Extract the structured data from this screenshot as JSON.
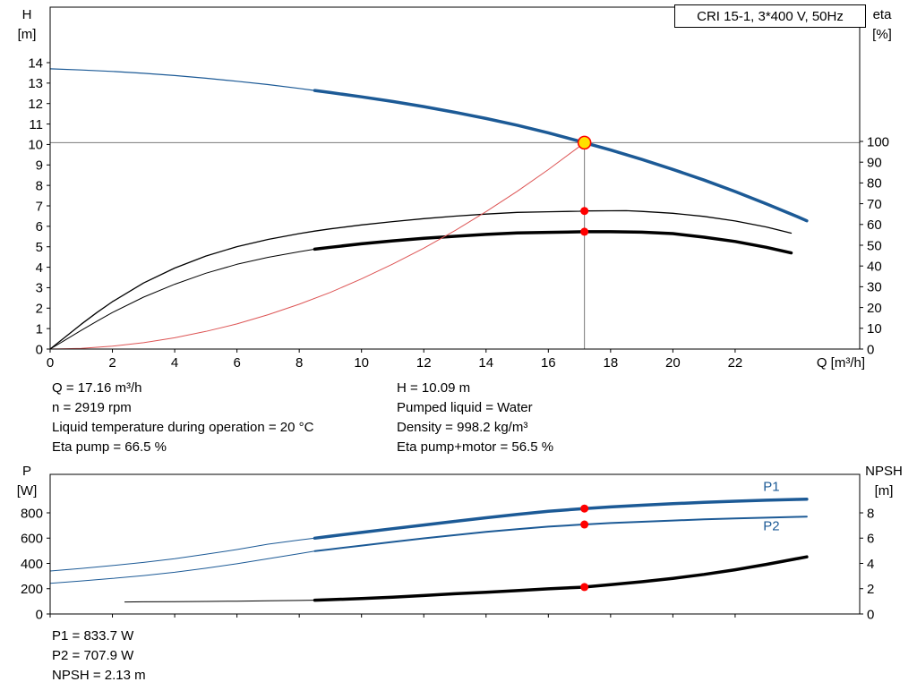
{
  "title_box": "CRI 15-1, 3*400 V, 50Hz",
  "info_top_left": [
    "Q = 17.16 m³/h",
    "n = 2919 rpm",
    "Liquid temperature during operation = 20 °C",
    "Eta pump = 66.5 %"
  ],
  "info_top_right": [
    "H = 10.09 m",
    "Pumped liquid = Water",
    "Density = 998.2 kg/m³",
    "Eta pump+motor = 56.5 %"
  ],
  "info_bottom": [
    "P1 = 833.7 W",
    "P2 = 707.9 W",
    "NPSH = 2.13 m"
  ],
  "operating_point": {
    "Q_m3h": 17.16,
    "H_m": 10.09,
    "n_rpm": 2919,
    "eta_pump_pct": 66.5,
    "eta_pump_motor_pct": 56.5,
    "P1_W": 833.7,
    "P2_W": 707.9,
    "NPSH_m": 2.13,
    "liquid": "Water",
    "density_kg_m3": 998.2,
    "temperature_C": 20
  },
  "colors": {
    "curve_blue": "#1c5a96",
    "curve_black": "#000000",
    "curve_red": "#dd5555",
    "marker_red": "#ff0000",
    "marker_yellow": "#ffe000",
    "crosshair_gray": "#7a7a7a"
  },
  "chart_data": [
    {
      "type": "line",
      "name": "hq-eta-chart",
      "title": "CRI 15-1, 3*400 V, 50Hz",
      "x_axis": {
        "label": "Q [m³/h]",
        "min": 0,
        "max": 26,
        "ticks": [
          0,
          2,
          4,
          6,
          8,
          10,
          12,
          14,
          16,
          18,
          20,
          22
        ],
        "show_labels": true
      },
      "y_left": {
        "label": [
          "H",
          "[m]"
        ],
        "min": 0,
        "max": 14,
        "ticks": [
          0,
          1,
          2,
          3,
          4,
          5,
          6,
          7,
          8,
          9,
          10,
          11,
          12,
          13,
          14
        ]
      },
      "y_right": {
        "label": [
          "eta",
          "[%]"
        ],
        "min": 0,
        "max": 100,
        "ticks": [
          0,
          10,
          20,
          30,
          40,
          50,
          60,
          70,
          80,
          90,
          100
        ]
      },
      "crosshair": {
        "x": 17.16,
        "v": 10.09
      },
      "series": [
        {
          "name": "head-curve-thin",
          "axis": "left",
          "color": "#1c5a96",
          "width": 1.2,
          "points": [
            [
              0,
              13.7
            ],
            [
              1,
              13.64
            ],
            [
              2,
              13.57
            ],
            [
              3,
              13.48
            ],
            [
              4,
              13.37
            ],
            [
              5,
              13.24
            ],
            [
              6,
              13.09
            ],
            [
              7,
              12.93
            ],
            [
              8,
              12.74
            ],
            [
              8.5,
              12.64
            ]
          ]
        },
        {
          "name": "head-curve",
          "axis": "left",
          "color": "#1c5a96",
          "width": 3.5,
          "points": [
            [
              8.5,
              12.64
            ],
            [
              9,
              12.54
            ],
            [
              10,
              12.33
            ],
            [
              11,
              12.1
            ],
            [
              12,
              11.85
            ],
            [
              13,
              11.57
            ],
            [
              14,
              11.27
            ],
            [
              15,
              10.94
            ],
            [
              16,
              10.57
            ],
            [
              17,
              10.16
            ],
            [
              17.16,
              10.09
            ],
            [
              18,
              9.73
            ],
            [
              19,
              9.27
            ],
            [
              20,
              8.78
            ],
            [
              21,
              8.26
            ],
            [
              22,
              7.7
            ],
            [
              23,
              7.1
            ],
            [
              24,
              6.47
            ],
            [
              24.3,
              6.27
            ]
          ]
        },
        {
          "name": "eta-pump-curve",
          "axis": "right",
          "color": "#000000",
          "width": 1.3,
          "points": [
            [
              0,
              0
            ],
            [
              0.5,
              6
            ],
            [
              1,
              12
            ],
            [
              1.5,
              17.6
            ],
            [
              2,
              22.8
            ],
            [
              3,
              31.8
            ],
            [
              4,
              39
            ],
            [
              5,
              44.8
            ],
            [
              6,
              49.3
            ],
            [
              7,
              52.8
            ],
            [
              8,
              55.6
            ],
            [
              8.5,
              56.8
            ],
            [
              9,
              57.9
            ],
            [
              10,
              59.8
            ],
            [
              11,
              61.4
            ],
            [
              12,
              62.8
            ],
            [
              13,
              64
            ],
            [
              14,
              65
            ],
            [
              15,
              65.8
            ],
            [
              16,
              66.1
            ],
            [
              17,
              66.4
            ],
            [
              17.16,
              66.5
            ],
            [
              18,
              66.6
            ],
            [
              18.5,
              66.65
            ],
            [
              19,
              66.3
            ],
            [
              20,
              65.4
            ],
            [
              21,
              63.9
            ],
            [
              22,
              61.7
            ],
            [
              23,
              58.8
            ],
            [
              23.8,
              55.8
            ]
          ]
        },
        {
          "name": "eta-pump-motor-curve-thin",
          "axis": "right",
          "color": "#000000",
          "width": 1,
          "points": [
            [
              0,
              0
            ],
            [
              0.5,
              4.5
            ],
            [
              1,
              9
            ],
            [
              1.5,
              13.4
            ],
            [
              2,
              17.6
            ],
            [
              3,
              25
            ],
            [
              4,
              31.2
            ],
            [
              5,
              36.5
            ],
            [
              6,
              40.8
            ],
            [
              7,
              44.2
            ],
            [
              8,
              46.9
            ],
            [
              8.5,
              48.1
            ]
          ]
        },
        {
          "name": "eta-pump-motor-curve",
          "axis": "right",
          "color": "#000000",
          "width": 3.5,
          "points": [
            [
              8.5,
              48.1
            ],
            [
              9,
              49
            ],
            [
              10,
              50.7
            ],
            [
              11,
              52.1
            ],
            [
              12,
              53.3
            ],
            [
              13,
              54.3
            ],
            [
              14,
              55.2
            ],
            [
              15,
              55.9
            ],
            [
              16,
              56.2
            ],
            [
              17,
              56.45
            ],
            [
              17.16,
              56.5
            ],
            [
              18,
              56.5
            ],
            [
              19,
              56.3
            ],
            [
              20,
              55.6
            ],
            [
              21,
              53.9
            ],
            [
              22,
              51.8
            ],
            [
              23,
              49
            ],
            [
              23.8,
              46.3
            ]
          ]
        },
        {
          "name": "system-curve",
          "axis": "left",
          "color": "#dd5555",
          "width": 1,
          "points": [
            [
              0,
              0
            ],
            [
              1,
              0.03
            ],
            [
              2,
              0.14
            ],
            [
              3,
              0.31
            ],
            [
              4,
              0.55
            ],
            [
              5,
              0.86
            ],
            [
              6,
              1.23
            ],
            [
              7,
              1.68
            ],
            [
              8,
              2.19
            ],
            [
              9,
              2.77
            ],
            [
              10,
              3.43
            ],
            [
              11,
              4.15
            ],
            [
              12,
              4.93
            ],
            [
              13,
              5.79
            ],
            [
              14,
              6.72
            ],
            [
              15,
              7.71
            ],
            [
              16,
              8.77
            ],
            [
              17,
              9.9
            ],
            [
              17.16,
              10.09
            ]
          ]
        }
      ],
      "markers": [
        {
          "style": "duty",
          "axis": "left",
          "x": 17.16,
          "v": 10.09
        },
        {
          "style": "dot",
          "axis": "right",
          "x": 17.16,
          "v": 66.5
        },
        {
          "style": "dot",
          "axis": "right",
          "x": 17.16,
          "v": 56.5
        }
      ],
      "annotations": []
    },
    {
      "type": "line",
      "name": "power-npsh-chart",
      "title": "",
      "x_axis": {
        "label": "",
        "min": 0,
        "max": 26,
        "ticks": [
          0,
          2,
          4,
          6,
          8,
          10,
          12,
          14,
          16,
          18,
          20,
          22
        ],
        "show_labels": false
      },
      "y_left": {
        "label": [
          "P",
          "[W]"
        ],
        "min": 0,
        "max": 800,
        "ticks": [
          0,
          200,
          400,
          600,
          800
        ]
      },
      "y_right": {
        "label": [
          "NPSH",
          "[m]"
        ],
        "min": 0,
        "max": 8,
        "ticks": [
          0,
          2,
          4,
          6,
          8
        ]
      },
      "series": [
        {
          "name": "p1-curve-thin",
          "axis": "left",
          "color": "#1c5a96",
          "width": 1,
          "points": [
            [
              0,
              340
            ],
            [
              1,
              360
            ],
            [
              2,
              383
            ],
            [
              3,
              408
            ],
            [
              4,
              437
            ],
            [
              5,
              472
            ],
            [
              6,
              510
            ],
            [
              7,
              552
            ],
            [
              8,
              585
            ],
            [
              8.5,
              600
            ]
          ]
        },
        {
          "name": "p1-curve",
          "axis": "left",
          "color": "#1c5a96",
          "width": 3.5,
          "points": [
            [
              8.5,
              600
            ],
            [
              9,
              615
            ],
            [
              10,
              645
            ],
            [
              11,
              675
            ],
            [
              12,
              704
            ],
            [
              13,
              733
            ],
            [
              14,
              761
            ],
            [
              15,
              787
            ],
            [
              16,
              812
            ],
            [
              17,
              831
            ],
            [
              17.16,
              833.7
            ],
            [
              18,
              847
            ],
            [
              19,
              860
            ],
            [
              20,
              872
            ],
            [
              21,
              883
            ],
            [
              22,
              892
            ],
            [
              23,
              900
            ],
            [
              24,
              906
            ],
            [
              24.3,
              908
            ]
          ]
        },
        {
          "name": "p2-curve-thin",
          "axis": "left",
          "color": "#1c5a96",
          "width": 1,
          "points": [
            [
              0,
              243
            ],
            [
              1,
              261
            ],
            [
              2,
              281
            ],
            [
              3,
              304
            ],
            [
              4,
              330
            ],
            [
              5,
              362
            ],
            [
              6,
              397
            ],
            [
              7,
              437
            ],
            [
              8,
              477
            ],
            [
              8.5,
              497
            ]
          ]
        },
        {
          "name": "p2-curve",
          "axis": "left",
          "color": "#1c5a96",
          "width": 2,
          "points": [
            [
              8.5,
              497
            ],
            [
              9,
              512
            ],
            [
              10,
              541
            ],
            [
              11,
              570
            ],
            [
              12,
              598
            ],
            [
              13,
              624
            ],
            [
              14,
              649
            ],
            [
              15,
              671
            ],
            [
              16,
              691
            ],
            [
              17,
              706
            ],
            [
              17.16,
              707.9
            ],
            [
              18,
              719
            ],
            [
              19,
              729
            ],
            [
              20,
              739
            ],
            [
              21,
              748
            ],
            [
              22,
              756
            ],
            [
              23,
              762
            ],
            [
              24,
              768
            ],
            [
              24.3,
              770
            ]
          ]
        },
        {
          "name": "npsh-curve-thin",
          "axis": "right",
          "color": "#000000",
          "width": 1,
          "points": [
            [
              2.4,
              0.95
            ],
            [
              3,
              0.96
            ],
            [
              4,
              0.97
            ],
            [
              5,
              0.99
            ],
            [
              6,
              1.01
            ],
            [
              7,
              1.04
            ],
            [
              8,
              1.07
            ],
            [
              8.5,
              1.09
            ]
          ]
        },
        {
          "name": "npsh-curve",
          "axis": "right",
          "color": "#000000",
          "width": 3.5,
          "points": [
            [
              8.5,
              1.09
            ],
            [
              9,
              1.13
            ],
            [
              10,
              1.22
            ],
            [
              11,
              1.33
            ],
            [
              12,
              1.46
            ],
            [
              13,
              1.6
            ],
            [
              14,
              1.72
            ],
            [
              15,
              1.85
            ],
            [
              16,
              1.99
            ],
            [
              17,
              2.11
            ],
            [
              17.16,
              2.13
            ],
            [
              18,
              2.32
            ],
            [
              19,
              2.55
            ],
            [
              20,
              2.82
            ],
            [
              21,
              3.13
            ],
            [
              22,
              3.5
            ],
            [
              23,
              3.92
            ],
            [
              24,
              4.38
            ],
            [
              24.3,
              4.52
            ]
          ]
        }
      ],
      "markers": [
        {
          "style": "dot",
          "axis": "left",
          "x": 17.16,
          "v": 833.7
        },
        {
          "style": "dot",
          "axis": "left",
          "x": 17.16,
          "v": 707.9
        },
        {
          "style": "dot",
          "axis": "right",
          "x": 17.16,
          "v": 2.13
        }
      ],
      "annotations": [
        {
          "text": "P1",
          "axis": "left",
          "x": 22.9,
          "v": 975,
          "color": "#1c5a96"
        },
        {
          "text": "P2",
          "axis": "left",
          "x": 22.9,
          "v": 662,
          "color": "#1c5a96"
        }
      ]
    }
  ]
}
